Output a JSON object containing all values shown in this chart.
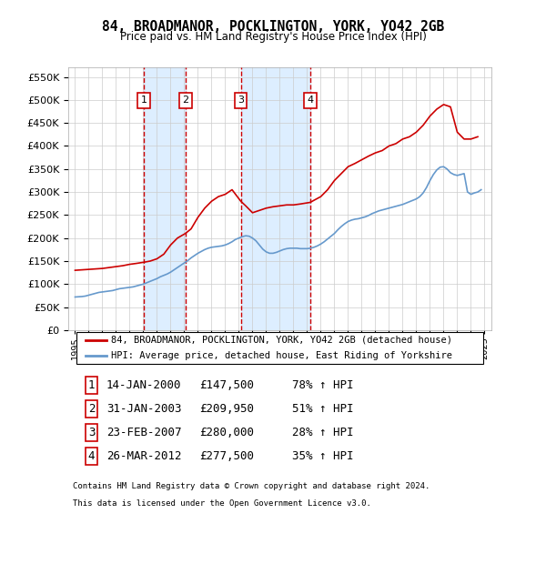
{
  "title": "84, BROADMANOR, POCKLINGTON, YORK, YO42 2GB",
  "subtitle": "Price paid vs. HM Land Registry's House Price Index (HPI)",
  "footer1": "Contains HM Land Registry data © Crown copyright and database right 2024.",
  "footer2": "This data is licensed under the Open Government Licence v3.0.",
  "legend_line1": "84, BROADMANOR, POCKLINGTON, YORK, YO42 2GB (detached house)",
  "legend_line2": "HPI: Average price, detached house, East Riding of Yorkshire",
  "transactions": [
    {
      "num": 1,
      "date": "14-JAN-2000",
      "price": 147500,
      "pct": "78%",
      "dir": "↑"
    },
    {
      "num": 2,
      "date": "31-JAN-2003",
      "price": 209950,
      "pct": "51%",
      "dir": "↑"
    },
    {
      "num": 3,
      "date": "23-FEB-2007",
      "price": 280000,
      "pct": "28%",
      "dir": "↑"
    },
    {
      "num": 4,
      "date": "26-MAR-2012",
      "price": 277500,
      "pct": "35%",
      "dir": "↑"
    }
  ],
  "transaction_dates_decimal": [
    2000.04,
    2003.08,
    2007.14,
    2012.23
  ],
  "transaction_prices": [
    147500,
    209950,
    280000,
    277500
  ],
  "hpi_color": "#6699cc",
  "price_color": "#cc0000",
  "dashed_color": "#cc0000",
  "shade_color": "#ddeeff",
  "ylim": [
    0,
    570000
  ],
  "yticks": [
    0,
    50000,
    100000,
    150000,
    200000,
    250000,
    300000,
    350000,
    400000,
    450000,
    500000,
    550000
  ],
  "xlim_start": 1994.5,
  "xlim_end": 2025.5,
  "hpi_years": [
    1995,
    1995.25,
    1995.5,
    1995.75,
    1996,
    1996.25,
    1996.5,
    1996.75,
    1997,
    1997.25,
    1997.5,
    1997.75,
    1998,
    1998.25,
    1998.5,
    1998.75,
    1999,
    1999.25,
    1999.5,
    1999.75,
    2000,
    2000.25,
    2000.5,
    2000.75,
    2001,
    2001.25,
    2001.5,
    2001.75,
    2002,
    2002.25,
    2002.5,
    2002.75,
    2003,
    2003.25,
    2003.5,
    2003.75,
    2004,
    2004.25,
    2004.5,
    2004.75,
    2005,
    2005.25,
    2005.5,
    2005.75,
    2006,
    2006.25,
    2006.5,
    2006.75,
    2007,
    2007.25,
    2007.5,
    2007.75,
    2008,
    2008.25,
    2008.5,
    2008.75,
    2009,
    2009.25,
    2009.5,
    2009.75,
    2010,
    2010.25,
    2010.5,
    2010.75,
    2011,
    2011.25,
    2011.5,
    2011.75,
    2012,
    2012.25,
    2012.5,
    2012.75,
    2013,
    2013.25,
    2013.5,
    2013.75,
    2014,
    2014.25,
    2014.5,
    2014.75,
    2015,
    2015.25,
    2015.5,
    2015.75,
    2016,
    2016.25,
    2016.5,
    2016.75,
    2017,
    2017.25,
    2017.5,
    2017.75,
    2018,
    2018.25,
    2018.5,
    2018.75,
    2019,
    2019.25,
    2019.5,
    2019.75,
    2020,
    2020.25,
    2020.5,
    2020.75,
    2021,
    2021.25,
    2021.5,
    2021.75,
    2022,
    2022.25,
    2022.5,
    2022.75,
    2023,
    2023.25,
    2023.5,
    2023.75,
    2024,
    2024.25,
    2024.5,
    2024.75
  ],
  "hpi_values": [
    72000,
    72500,
    73000,
    74000,
    76000,
    78000,
    80000,
    82000,
    83000,
    84000,
    85000,
    86000,
    88000,
    90000,
    91000,
    92000,
    93000,
    94000,
    96000,
    98000,
    100000,
    103000,
    106000,
    109000,
    112000,
    116000,
    119000,
    122000,
    126000,
    131000,
    136000,
    141000,
    146000,
    151000,
    157000,
    162000,
    167000,
    171000,
    175000,
    178000,
    180000,
    181000,
    182000,
    183000,
    185000,
    188000,
    192000,
    197000,
    200000,
    203000,
    205000,
    204000,
    200000,
    194000,
    185000,
    176000,
    170000,
    167000,
    167000,
    169000,
    172000,
    175000,
    177000,
    178000,
    178000,
    178000,
    177000,
    177000,
    177000,
    178000,
    180000,
    183000,
    187000,
    192000,
    198000,
    204000,
    210000,
    218000,
    225000,
    231000,
    236000,
    239000,
    241000,
    242000,
    244000,
    246000,
    249000,
    253000,
    256000,
    259000,
    261000,
    263000,
    265000,
    267000,
    269000,
    271000,
    273000,
    276000,
    279000,
    282000,
    285000,
    290000,
    298000,
    310000,
    325000,
    338000,
    348000,
    354000,
    355000,
    350000,
    342000,
    338000,
    336000,
    338000,
    340000,
    300000,
    295000,
    298000,
    300000,
    305000
  ],
  "price_years": [
    1995,
    1995.5,
    1996,
    1996.5,
    1997,
    1997.5,
    1998,
    1998.5,
    1999,
    1999.5,
    2000.04,
    2000.5,
    2001,
    2001.5,
    2002,
    2002.5,
    2003.08,
    2003.5,
    2004,
    2004.5,
    2005,
    2005.5,
    2006,
    2006.5,
    2007.14,
    2007.5,
    2008,
    2008.5,
    2009,
    2009.5,
    2010,
    2010.5,
    2011,
    2011.5,
    2012.23,
    2012.5,
    2013,
    2013.5,
    2014,
    2014.5,
    2015,
    2015.5,
    2016,
    2016.5,
    2017,
    2017.5,
    2018,
    2018.5,
    2019,
    2019.5,
    2020,
    2020.5,
    2021,
    2021.5,
    2022,
    2022.5,
    2023,
    2023.5,
    2024,
    2024.5
  ],
  "price_values": [
    130000,
    131000,
    132000,
    133000,
    134000,
    136000,
    138000,
    140000,
    143000,
    145000,
    147500,
    150000,
    155000,
    165000,
    185000,
    200000,
    209950,
    220000,
    245000,
    265000,
    280000,
    290000,
    295000,
    305000,
    280000,
    270000,
    255000,
    260000,
    265000,
    268000,
    270000,
    272000,
    272000,
    274000,
    277500,
    282000,
    290000,
    305000,
    325000,
    340000,
    355000,
    362000,
    370000,
    378000,
    385000,
    390000,
    400000,
    405000,
    415000,
    420000,
    430000,
    445000,
    465000,
    480000,
    490000,
    485000,
    430000,
    415000,
    415000,
    420000
  ]
}
